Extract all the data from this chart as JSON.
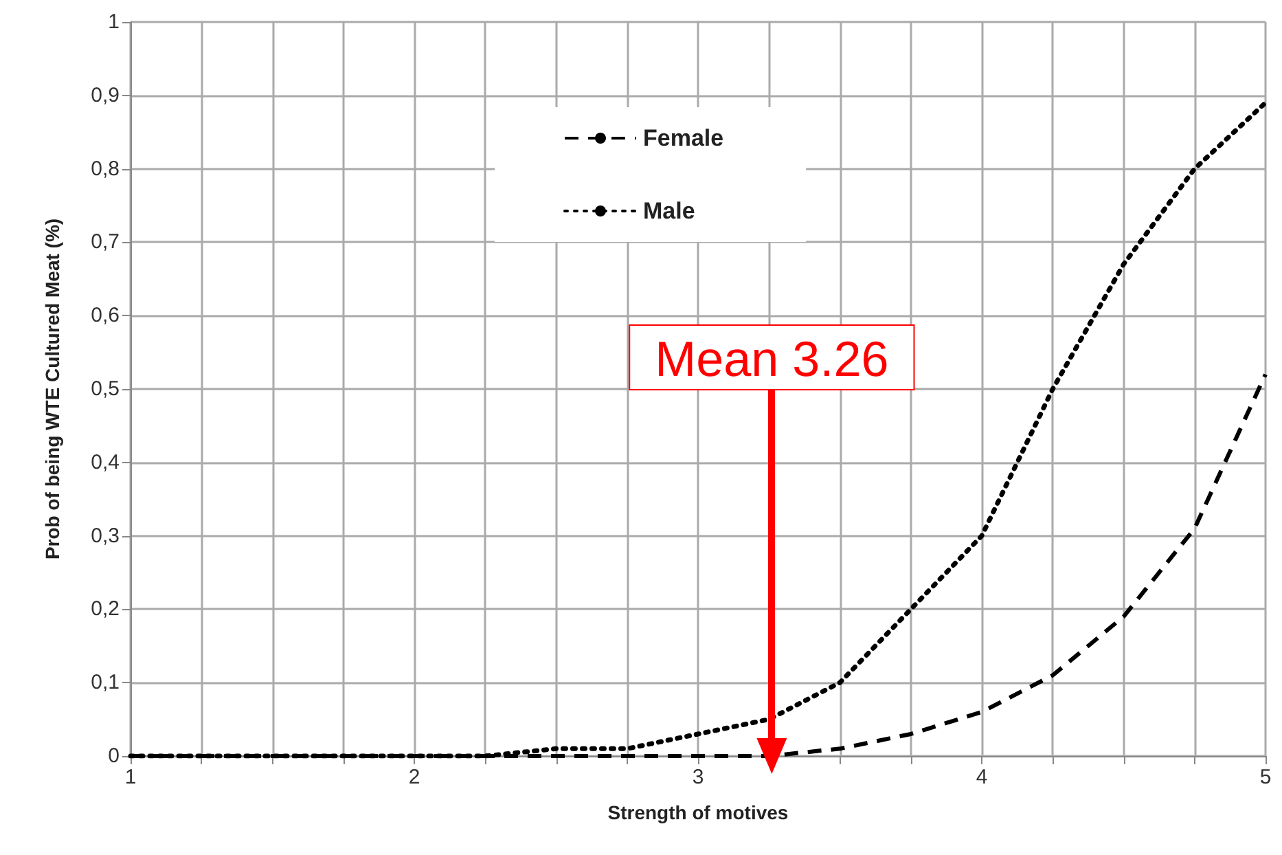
{
  "chart_data": {
    "type": "line",
    "xlabel": "Strength of motives",
    "ylabel": "Prob of being WTE Cultured Meat (%)",
    "x": [
      1,
      1.25,
      1.5,
      1.75,
      2,
      2.25,
      2.5,
      2.75,
      3,
      3.25,
      3.5,
      3.75,
      4,
      4.25,
      4.5,
      4.75,
      5
    ],
    "series": [
      {
        "name": "Female",
        "color": "#000000",
        "line_style": "dashed",
        "values": [
          0,
          0,
          0,
          0,
          0,
          0,
          0,
          0,
          0,
          0,
          0.01,
          0.03,
          0.06,
          0.11,
          0.19,
          0.31,
          0.52
        ]
      },
      {
        "name": "Male",
        "color": "#000000",
        "line_style": "dotted",
        "values": [
          0,
          0,
          0,
          0,
          0,
          0,
          0.01,
          0.01,
          0.03,
          0.05,
          0.1,
          0.2,
          0.3,
          0.5,
          0.67,
          0.8,
          0.89
        ]
      }
    ],
    "annotations": [
      {
        "text": "Mean 3.26",
        "x": 3.26,
        "y": 0
      }
    ],
    "xlim": [
      1,
      5
    ],
    "xticks": [
      1,
      {
        "value": 1.25,
        "label": null
      },
      {
        "value": 1.5,
        "label": null
      },
      {
        "value": 1.75,
        "label": null
      },
      2,
      {
        "value": 2.25,
        "label": null
      },
      {
        "value": 2.5,
        "label": null
      },
      {
        "value": 2.75,
        "label": null
      },
      3,
      {
        "value": 3.25,
        "label": null
      },
      {
        "value": 3.5,
        "label": null
      },
      {
        "value": 3.75,
        "label": null
      },
      4,
      {
        "value": 4.25,
        "label": null
      },
      {
        "value": 4.5,
        "label": null
      },
      {
        "value": 4.75,
        "label": null
      },
      5
    ],
    "ylim": [
      0,
      1
    ],
    "yticks": [
      0,
      {
        "value": 0.1,
        "label": "0,1"
      },
      {
        "value": 0.2,
        "label": "0,2"
      },
      {
        "value": 0.3,
        "label": "0,3"
      },
      {
        "value": 0.4,
        "label": "0,4"
      },
      {
        "value": 0.5,
        "label": "0,5"
      },
      {
        "value": 0.6,
        "label": "0,6"
      },
      {
        "value": 0.7,
        "label": "0,7"
      },
      {
        "value": 0.8,
        "label": "0,8"
      },
      {
        "value": 0.9,
        "label": "0,9"
      },
      1
    ],
    "grid": true,
    "legend": "top",
    "marker": "none"
  }
}
